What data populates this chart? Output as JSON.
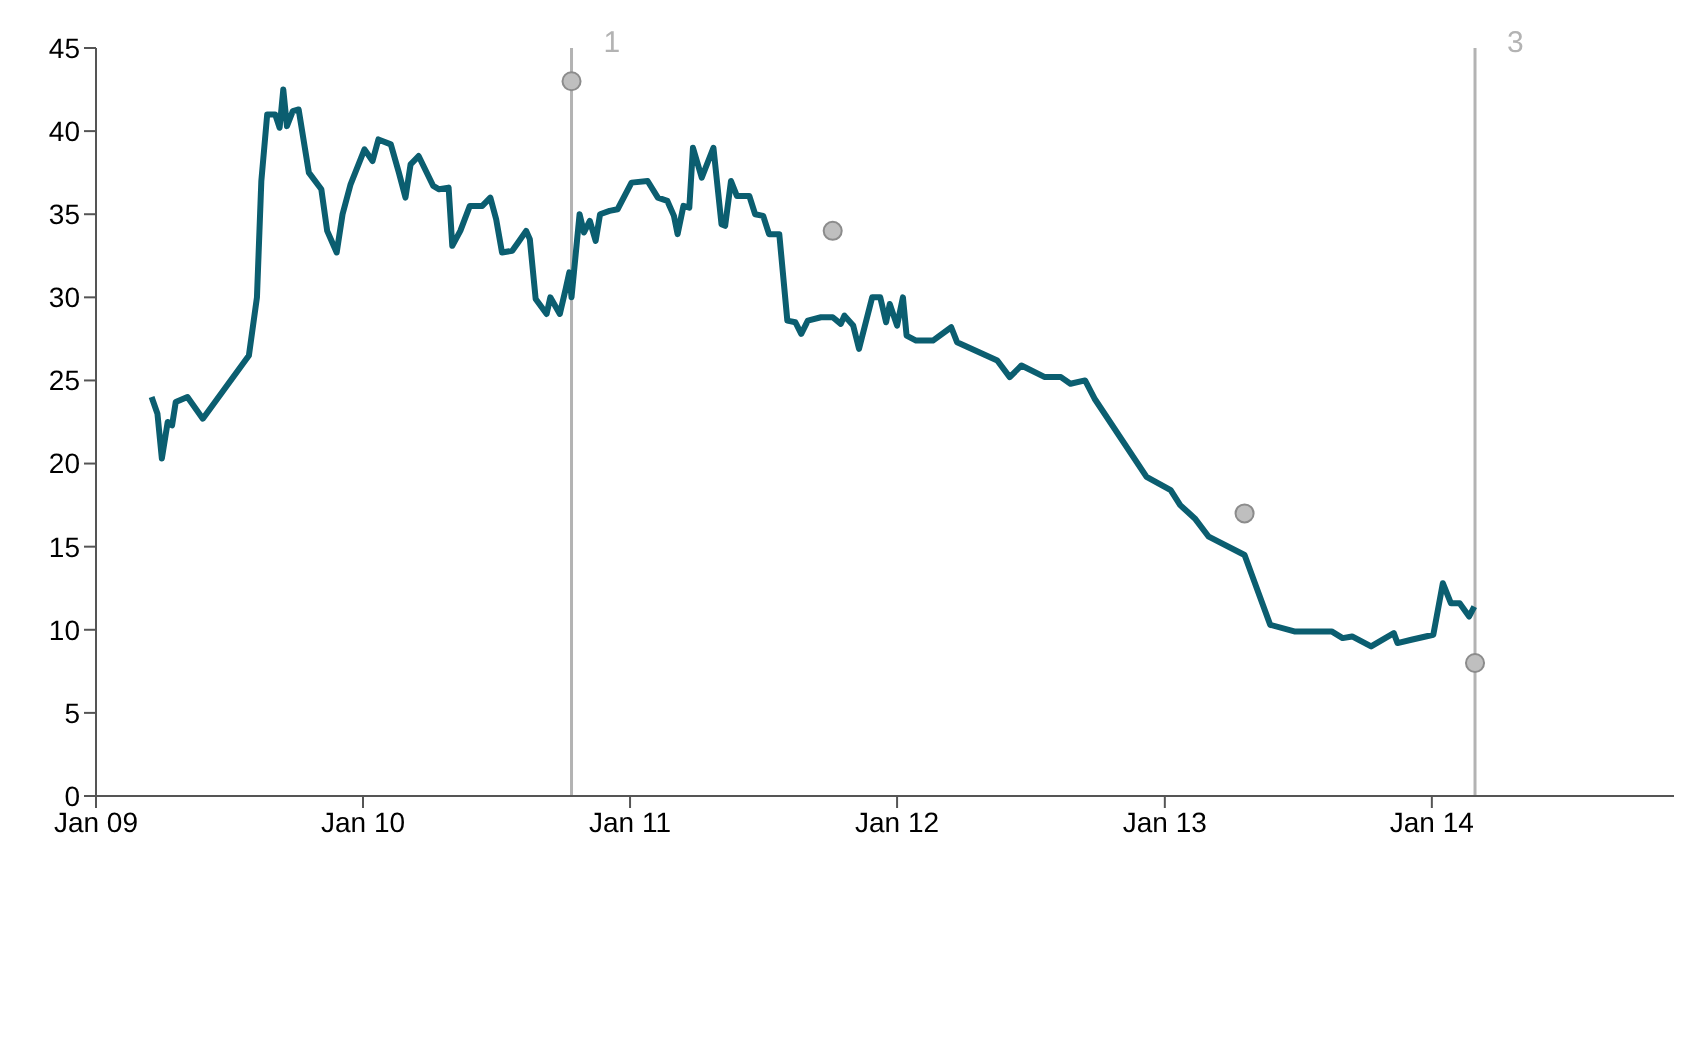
{
  "chart_data": {
    "type": "line",
    "xlim": [
      "2009-01-01",
      "2014-11-28"
    ],
    "xticks": [
      {
        "value": "2009-01-01",
        "label": "Jan 09"
      },
      {
        "value": "2010-01-01",
        "label": "Jan 10"
      },
      {
        "value": "2011-01-01",
        "label": "Jan 11"
      },
      {
        "value": "2012-01-01",
        "label": "Jan 12"
      },
      {
        "value": "2013-01-01",
        "label": "Jan 13"
      },
      {
        "value": "2014-01-01",
        "label": "Jan 14"
      }
    ],
    "ylim": [
      0,
      45
    ],
    "yticks": [
      0,
      5,
      10,
      15,
      20,
      25,
      30,
      35,
      40,
      45
    ],
    "grid": false,
    "ref_lines": [
      {
        "axis": "x",
        "value": "2010-10-13",
        "label": "1",
        "color": "#b3b3b3"
      },
      {
        "axis": "x",
        "value": "2014-03-01",
        "label": "3",
        "color": "#b3b3b3"
      }
    ],
    "series": [
      {
        "color": "#0b5e70",
        "marker": "none",
        "line_style": "solid",
        "x": [
          "2009-03-18",
          "2009-03-26",
          "2009-04-01",
          "2009-04-09",
          "2009-04-15",
          "2009-04-20",
          "2009-05-06",
          "2009-05-27",
          "2009-07-29",
          "2009-08-09",
          "2009-08-15",
          "2009-08-23",
          "2009-09-03",
          "2009-09-09",
          "2009-09-14",
          "2009-09-19",
          "2009-09-27",
          "2009-10-05",
          "2009-10-19",
          "2009-11-05",
          "2009-11-13",
          "2009-11-26",
          "2009-12-04",
          "2009-12-15",
          "2010-01-03",
          "2010-01-14",
          "2010-01-22",
          "2010-02-08",
          "2010-02-19",
          "2010-02-28",
          "2010-03-07",
          "2010-03-18",
          "2010-04-07",
          "2010-04-15",
          "2010-04-28",
          "2010-05-03",
          "2010-05-14",
          "2010-05-27",
          "2010-06-13",
          "2010-06-24",
          "2010-07-02",
          "2010-07-10",
          "2010-07-24",
          "2010-08-01",
          "2010-08-12",
          "2010-08-17",
          "2010-08-25",
          "2010-09-09",
          "2010-09-14",
          "2010-09-27",
          "2010-10-05",
          "2010-10-10",
          "2010-10-13",
          "2010-10-24",
          "2010-10-30",
          "2010-11-07",
          "2010-11-15",
          "2010-11-21",
          "2010-12-04",
          "2010-12-15",
          "2011-01-03",
          "2011-01-25",
          "2011-02-08",
          "2011-02-21",
          "2011-03-02",
          "2011-03-07",
          "2011-03-15",
          "2011-03-23",
          "2011-03-28",
          "2011-04-09",
          "2011-04-25",
          "2011-05-06",
          "2011-05-11",
          "2011-05-19",
          "2011-05-27",
          "2011-06-13",
          "2011-06-21",
          "2011-07-02",
          "2011-07-10",
          "2011-07-24",
          "2011-08-04",
          "2011-08-15",
          "2011-08-23",
          "2011-09-01",
          "2011-09-19",
          "2011-10-05",
          "2011-10-16",
          "2011-10-21",
          "2011-11-02",
          "2011-11-10",
          "2011-11-28",
          "2011-12-09",
          "2011-12-17",
          "2011-12-22",
          "2012-01-01",
          "2012-01-09",
          "2012-01-14",
          "2012-01-27",
          "2012-02-19",
          "2012-03-15",
          "2012-03-23",
          "2012-05-17",
          "2012-06-03",
          "2012-06-19",
          "2012-07-21",
          "2012-08-12",
          "2012-08-25",
          "2012-09-14",
          "2012-09-27",
          "2012-12-07",
          "2013-01-09",
          "2013-01-22",
          "2013-02-11",
          "2013-03-02",
          "2013-04-20",
          "2013-05-25",
          "2013-06-27",
          "2013-08-17",
          "2013-09-01",
          "2013-09-14",
          "2013-10-10",
          "2013-11-10",
          "2013-11-15",
          "2013-12-04",
          "2014-01-03",
          "2014-01-16",
          "2014-01-27",
          "2014-02-08",
          "2014-02-21",
          "2014-02-28"
        ],
        "values": [
          24,
          23,
          20.3,
          22.5,
          22.3,
          23.7,
          24,
          22.7,
          26.5,
          30,
          37,
          41,
          41,
          40.2,
          42.5,
          40.3,
          41.2,
          41.3,
          37.5,
          36.5,
          34,
          32.7,
          35,
          36.8,
          38.9,
          38.2,
          39.5,
          39.2,
          37.5,
          36,
          38,
          38.5,
          36.7,
          36.5,
          36.6,
          33.1,
          34,
          35.5,
          35.5,
          36,
          34.7,
          32.7,
          32.8,
          33.3,
          34,
          33.5,
          29.9,
          29,
          30,
          29,
          30.5,
          31.5,
          30,
          35,
          33.9,
          34.6,
          33.4,
          35,
          35.2,
          35.3,
          36.9,
          37,
          36,
          35.8,
          34.9,
          33.8,
          35.5,
          35.4,
          39,
          37.2,
          39,
          34.4,
          34.3,
          37,
          36.1,
          36.1,
          35,
          34.9,
          33.8,
          33.8,
          28.6,
          28.5,
          27.8,
          28.6,
          28.8,
          28.8,
          28.4,
          28.9,
          28.3,
          26.9,
          30,
          30,
          28.5,
          29.6,
          28.3,
          30,
          27.7,
          27.4,
          27.4,
          28.2,
          27.3,
          26.2,
          25.2,
          25.9,
          25.2,
          25.2,
          24.8,
          25,
          23.9,
          19.2,
          18.4,
          17.5,
          16.7,
          15.6,
          14.5,
          10.3,
          9.9,
          9.9,
          9.5,
          9.6,
          9,
          9.8,
          9.2,
          9.4,
          9.7,
          12.8,
          11.6,
          11.6,
          10.8,
          11.4
        ]
      },
      {
        "type": "scatter",
        "color": "#bfbfbf",
        "marker": "circle",
        "x": [
          "2010-10-13",
          "2011-10-05",
          "2013-04-20",
          "2014-03-01"
        ],
        "values": [
          43,
          34,
          17,
          8
        ]
      }
    ]
  }
}
